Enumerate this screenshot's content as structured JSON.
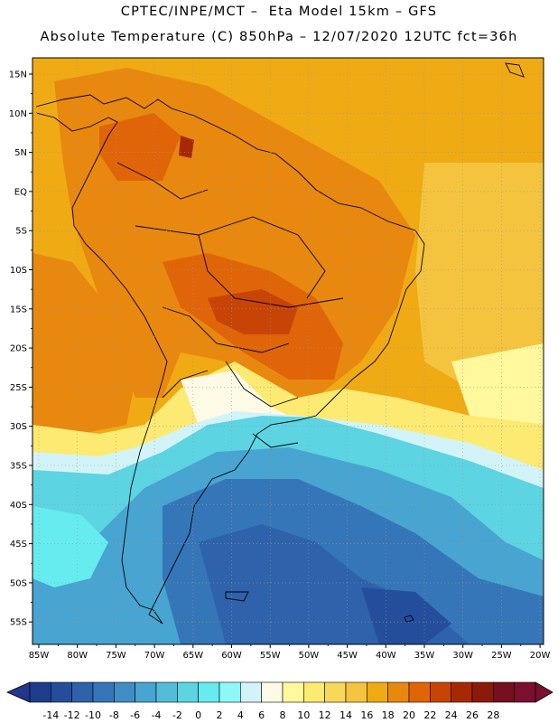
{
  "header": {
    "line1": "CPTEC/INPE/MCT –  Eta Model 15km – GFS",
    "line2": "Absolute Temperature (C) 850hPa – 12/07/2020 12UTC fct=36h"
  },
  "map": {
    "latitude_labels": [
      "15N",
      "10N",
      "5N",
      "EQ",
      "5S",
      "10S",
      "15S",
      "20S",
      "25S",
      "30S",
      "35S",
      "40S",
      "45S",
      "50S",
      "55S"
    ],
    "longitude_labels": [
      "85W",
      "80W",
      "75W",
      "70W",
      "65W",
      "60W",
      "55W",
      "50W",
      "45W",
      "40W",
      "35W",
      "30W",
      "25W",
      "20W"
    ]
  },
  "colorbar": {
    "labels": [
      "-14",
      "-12",
      "-10",
      "-8",
      "-6",
      "-4",
      "-2",
      "0",
      "2",
      "4",
      "6",
      "8",
      "10",
      "12",
      "14",
      "16",
      "18",
      "20",
      "22",
      "24",
      "26",
      "28"
    ],
    "colors": [
      "#1e3c8c",
      "#244e9c",
      "#2e62ab",
      "#3576b8",
      "#3f8ec5",
      "#48a4d0",
      "#52bcd8",
      "#5cd4e2",
      "#66ecee",
      "#8ef8f8",
      "#d2f4f8",
      "#fffae6",
      "#fff89c",
      "#fcea72",
      "#f8d85a",
      "#f4c43e",
      "#f0aa14",
      "#e8880e",
      "#e06408",
      "#c84406",
      "#a82804",
      "#8c1a0a",
      "#76101e",
      "#7a0f2e"
    ],
    "under_color": "#22368c",
    "over_color": "#7a0f2e"
  }
}
